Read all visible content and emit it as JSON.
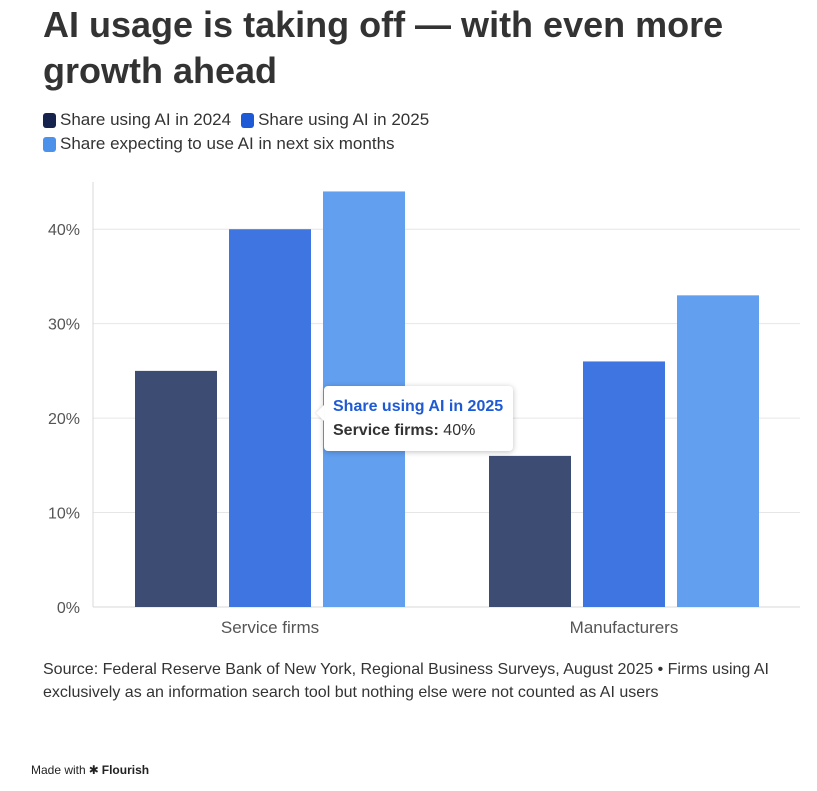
{
  "title": "AI usage is taking off — with even more growth ahead",
  "legend": [
    {
      "label": "Share using AI in 2024",
      "color": "#16244d"
    },
    {
      "label": "Share using AI in 2025",
      "color": "#1f5ad6"
    },
    {
      "label": "Share expecting to use AI in next six months",
      "color": "#4c92ea"
    }
  ],
  "colors": {
    "series_2024": "#3d4c72",
    "series_2025": "#3f75e0",
    "series_future": "#629fef",
    "grid": "#e6e6e6",
    "axis_text": "#555555",
    "tooltip_title": "#1f5ad6"
  },
  "chart_data": {
    "type": "bar",
    "title": "AI usage is taking off — with even more growth ahead",
    "categories": [
      "Service firms",
      "Manufacturers"
    ],
    "series": [
      {
        "name": "Share using AI in 2024",
        "values": [
          25,
          16
        ]
      },
      {
        "name": "Share using AI in 2025",
        "values": [
          40,
          26
        ]
      },
      {
        "name": "Share expecting to use AI in next six months",
        "values": [
          44,
          33
        ]
      }
    ],
    "ylim": [
      0,
      45
    ],
    "yticks": [
      0,
      10,
      20,
      30,
      40
    ],
    "ytick_labels": [
      "0%",
      "10%",
      "20%",
      "30%",
      "40%"
    ],
    "xlabel": "",
    "ylabel": "",
    "grid": true,
    "legend_position": "top-left"
  },
  "tooltip": {
    "title": "Share using AI in 2025",
    "label": "Service firms:",
    "value": "40%"
  },
  "source": "Source: Federal Reserve Bank of New York, Regional Business Surveys, August 2025 • Firms using AI exclusively as an information search tool but nothing else were not counted as AI users",
  "made_with": {
    "prefix": "Made with",
    "icon": "flourish-asterisk-icon",
    "brand": "Flourish"
  }
}
